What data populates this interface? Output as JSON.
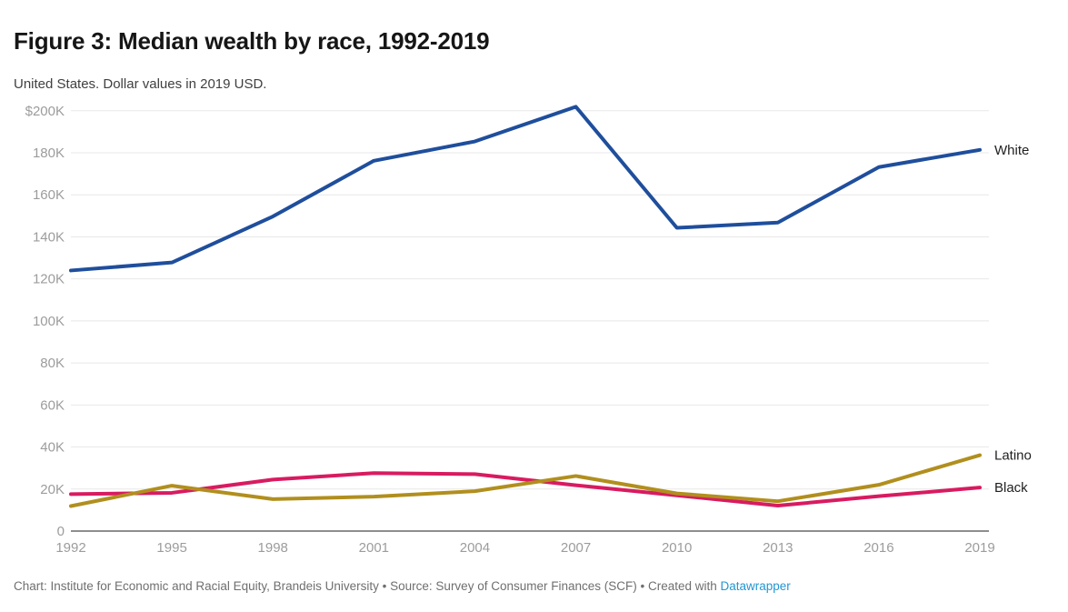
{
  "header": {
    "title": "Figure 3: Median wealth by race, 1992-2019",
    "subtitle": "United States. Dollar values in 2019 USD."
  },
  "footer": {
    "text": "Chart: Institute for Economic and Racial Equity, Brandeis University • Source: Survey of Consumer Finances (SCF) • Created with ",
    "link_label": "Datawrapper",
    "link_color": "#2496d2"
  },
  "chart_data": {
    "type": "line",
    "title": "Figure 3: Median wealth by race, 1992-2019",
    "subtitle": "United States. Dollar values in 2019 USD.",
    "unit": "thousands of 2019 USD",
    "x": [
      1992,
      1995,
      1998,
      2001,
      2004,
      2007,
      2010,
      2013,
      2016,
      2019
    ],
    "series": [
      {
        "name": "White",
        "color": "#1f4e9c",
        "values": [
          124.0,
          127.8,
          149.7,
          176.2,
          185.4,
          201.9,
          144.3,
          146.8,
          173.2,
          181.4
        ]
      },
      {
        "name": "Black",
        "color": "#d81b60",
        "values": [
          17.6,
          18.2,
          24.5,
          27.6,
          27.1,
          21.8,
          17.0,
          12.1,
          16.6,
          20.7
        ]
      },
      {
        "name": "Latino",
        "color": "#b18f1e",
        "values": [
          11.9,
          21.6,
          15.2,
          16.4,
          19.0,
          26.2,
          17.9,
          14.2,
          22.0,
          36.1
        ]
      }
    ],
    "y_ticks": [
      {
        "label": "$200K",
        "value": 200
      },
      {
        "label": "180K",
        "value": 180
      },
      {
        "label": "160K",
        "value": 160
      },
      {
        "label": "140K",
        "value": 140
      },
      {
        "label": "120K",
        "value": 120
      },
      {
        "label": "100K",
        "value": 100
      },
      {
        "label": "80K",
        "value": 80
      },
      {
        "label": "60K",
        "value": 60
      },
      {
        "label": "40K",
        "value": 40
      },
      {
        "label": "20K",
        "value": 20
      },
      {
        "label": "0",
        "value": 0
      }
    ],
    "x_tick_labels": [
      "1992",
      "1995",
      "1998",
      "2001",
      "2004",
      "2007",
      "2010",
      "2013",
      "2016",
      "2019"
    ],
    "ylim": [
      0,
      200
    ],
    "grid": "horizontal",
    "legend_position": "end-of-line",
    "grid_color": "#e8e8e8",
    "axis_color": "#1d1d1d",
    "tick_label_color": "#9c9c9c",
    "end_label_color": "#1f1f1f"
  }
}
